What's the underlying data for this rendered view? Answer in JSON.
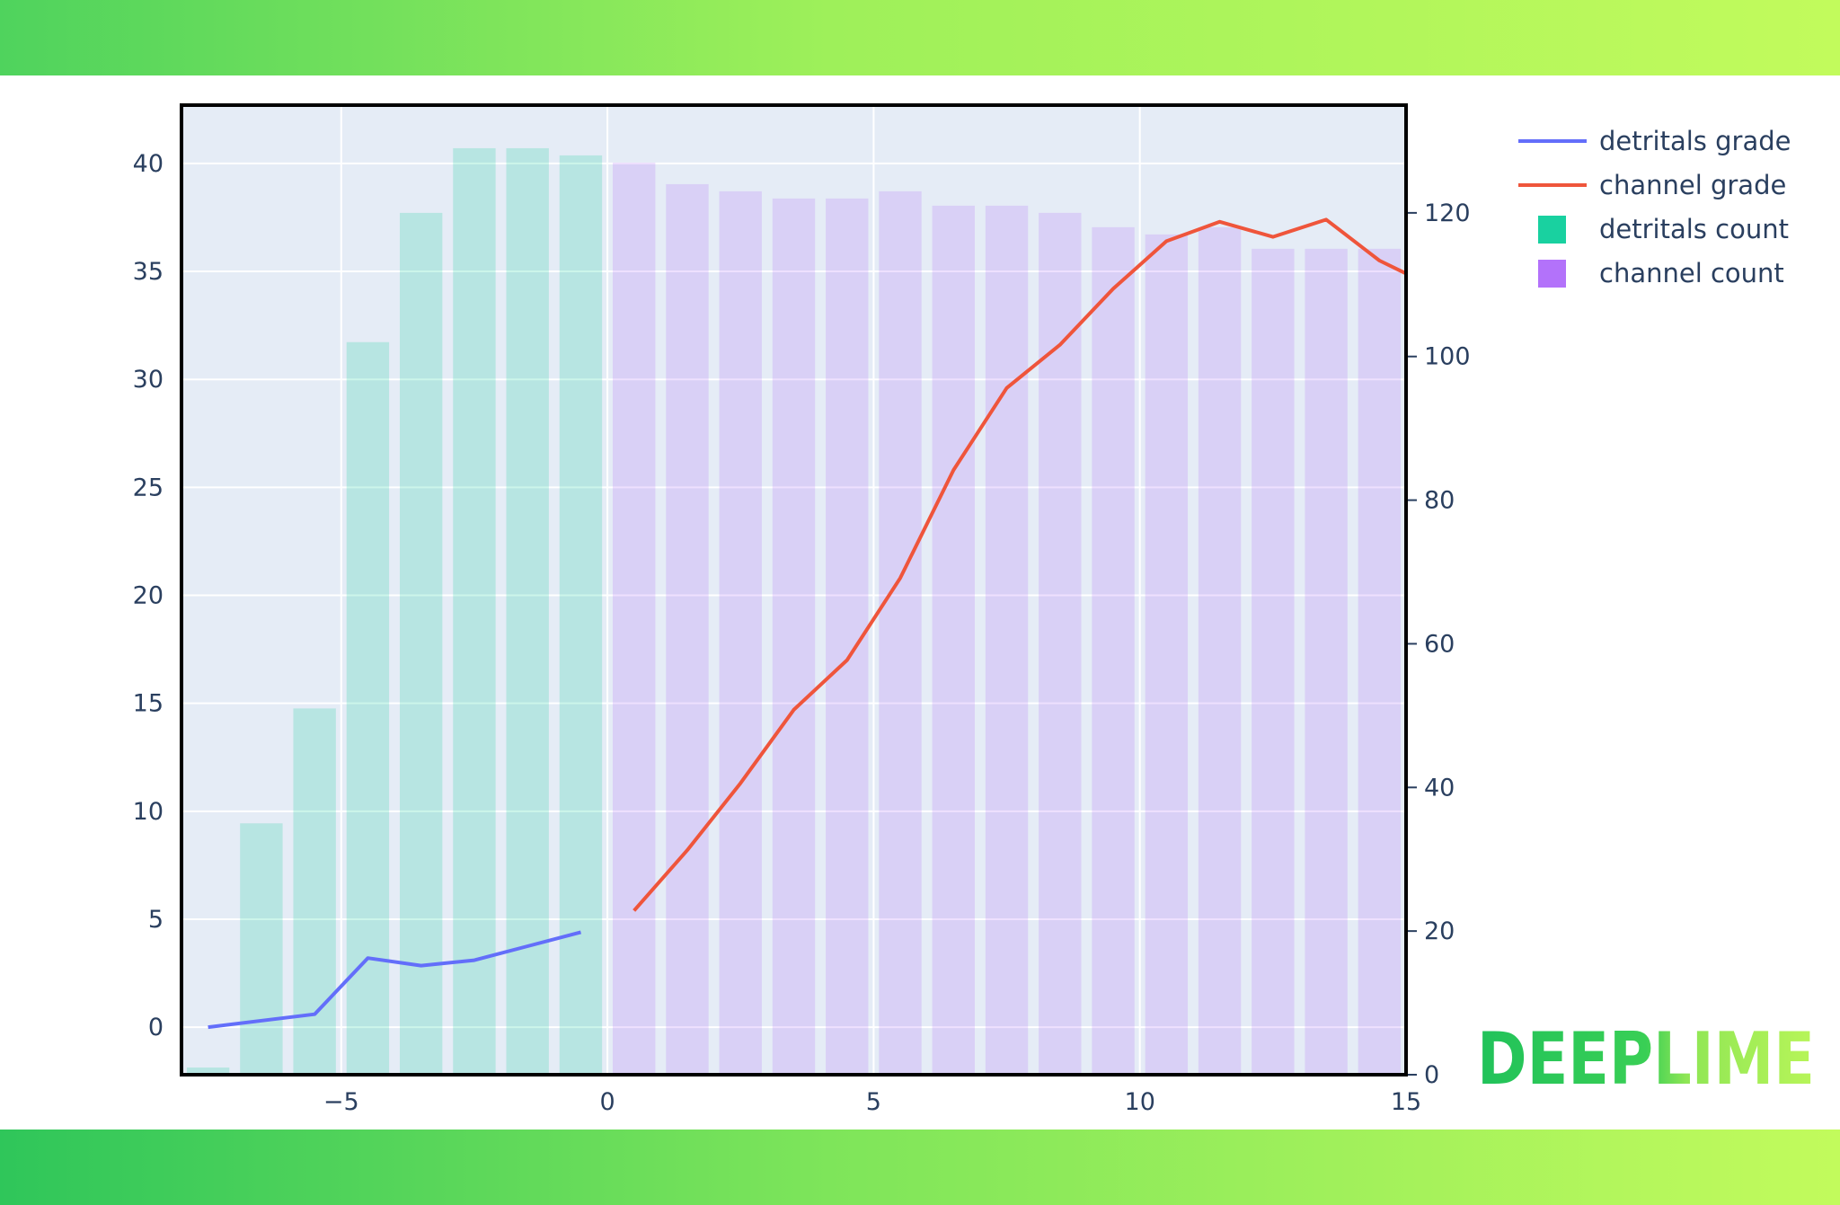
{
  "chart_data": {
    "type": "bar",
    "title": "",
    "xlabel": "",
    "ylabel": "",
    "x_range": [
      -8,
      15
    ],
    "x_ticks": [
      -5,
      0,
      5,
      10,
      15
    ],
    "x_tick_labels": [
      "−5",
      "0",
      "5",
      "10",
      "15"
    ],
    "y_left_range": [
      -2.2,
      42.7
    ],
    "y_left_ticks": [
      0,
      5,
      10,
      15,
      20,
      25,
      30,
      35,
      40
    ],
    "y_right_range": [
      0,
      135
    ],
    "y_right_ticks": [
      0,
      20,
      40,
      60,
      80,
      100,
      120
    ],
    "grid": true,
    "legend_position": "top-right, outside plot",
    "series": [
      {
        "name": "detritals grade",
        "kind": "line",
        "axis": "left",
        "color": "#636efa",
        "x": [
          -7.5,
          -5.5,
          -4.5,
          -3.5,
          -2.5,
          -1.5,
          -0.5
        ],
        "y": [
          0.0,
          0.6,
          3.2,
          2.85,
          3.1,
          3.75,
          4.4
        ]
      },
      {
        "name": "channel grade",
        "kind": "line",
        "axis": "left",
        "color": "#ef553b",
        "x": [
          0.5,
          1.5,
          2.5,
          3.5,
          4.5,
          5.5,
          6.5,
          7.5,
          8.5,
          9.5,
          10.5,
          11.5,
          12.5,
          13.5,
          14.5,
          15.0
        ],
        "y": [
          5.4,
          8.2,
          11.3,
          14.7,
          17.0,
          20.8,
          25.8,
          29.6,
          31.6,
          34.2,
          36.4,
          37.3,
          36.6,
          37.4,
          35.5,
          34.9
        ]
      },
      {
        "name": "detritals count",
        "kind": "bar",
        "axis": "right",
        "color": "#00cc96",
        "x": [
          -7.5,
          -6.5,
          -5.5,
          -4.5,
          -3.5,
          -2.5,
          -1.5,
          -0.5
        ],
        "values": [
          1,
          35,
          51,
          102,
          120,
          129,
          129,
          128
        ]
      },
      {
        "name": "channel count",
        "kind": "bar",
        "axis": "right",
        "color": "#ab63fa",
        "x": [
          0.5,
          1.5,
          2.5,
          3.5,
          4.5,
          5.5,
          6.5,
          7.5,
          8.5,
          9.5,
          10.5,
          11.5,
          12.5,
          13.5,
          14.5
        ],
        "values": [
          127,
          124,
          123,
          122,
          122,
          123,
          121,
          121,
          120,
          118,
          117,
          118,
          115,
          115,
          115
        ]
      }
    ]
  },
  "logo": {
    "text": "DEEPLIME"
  }
}
